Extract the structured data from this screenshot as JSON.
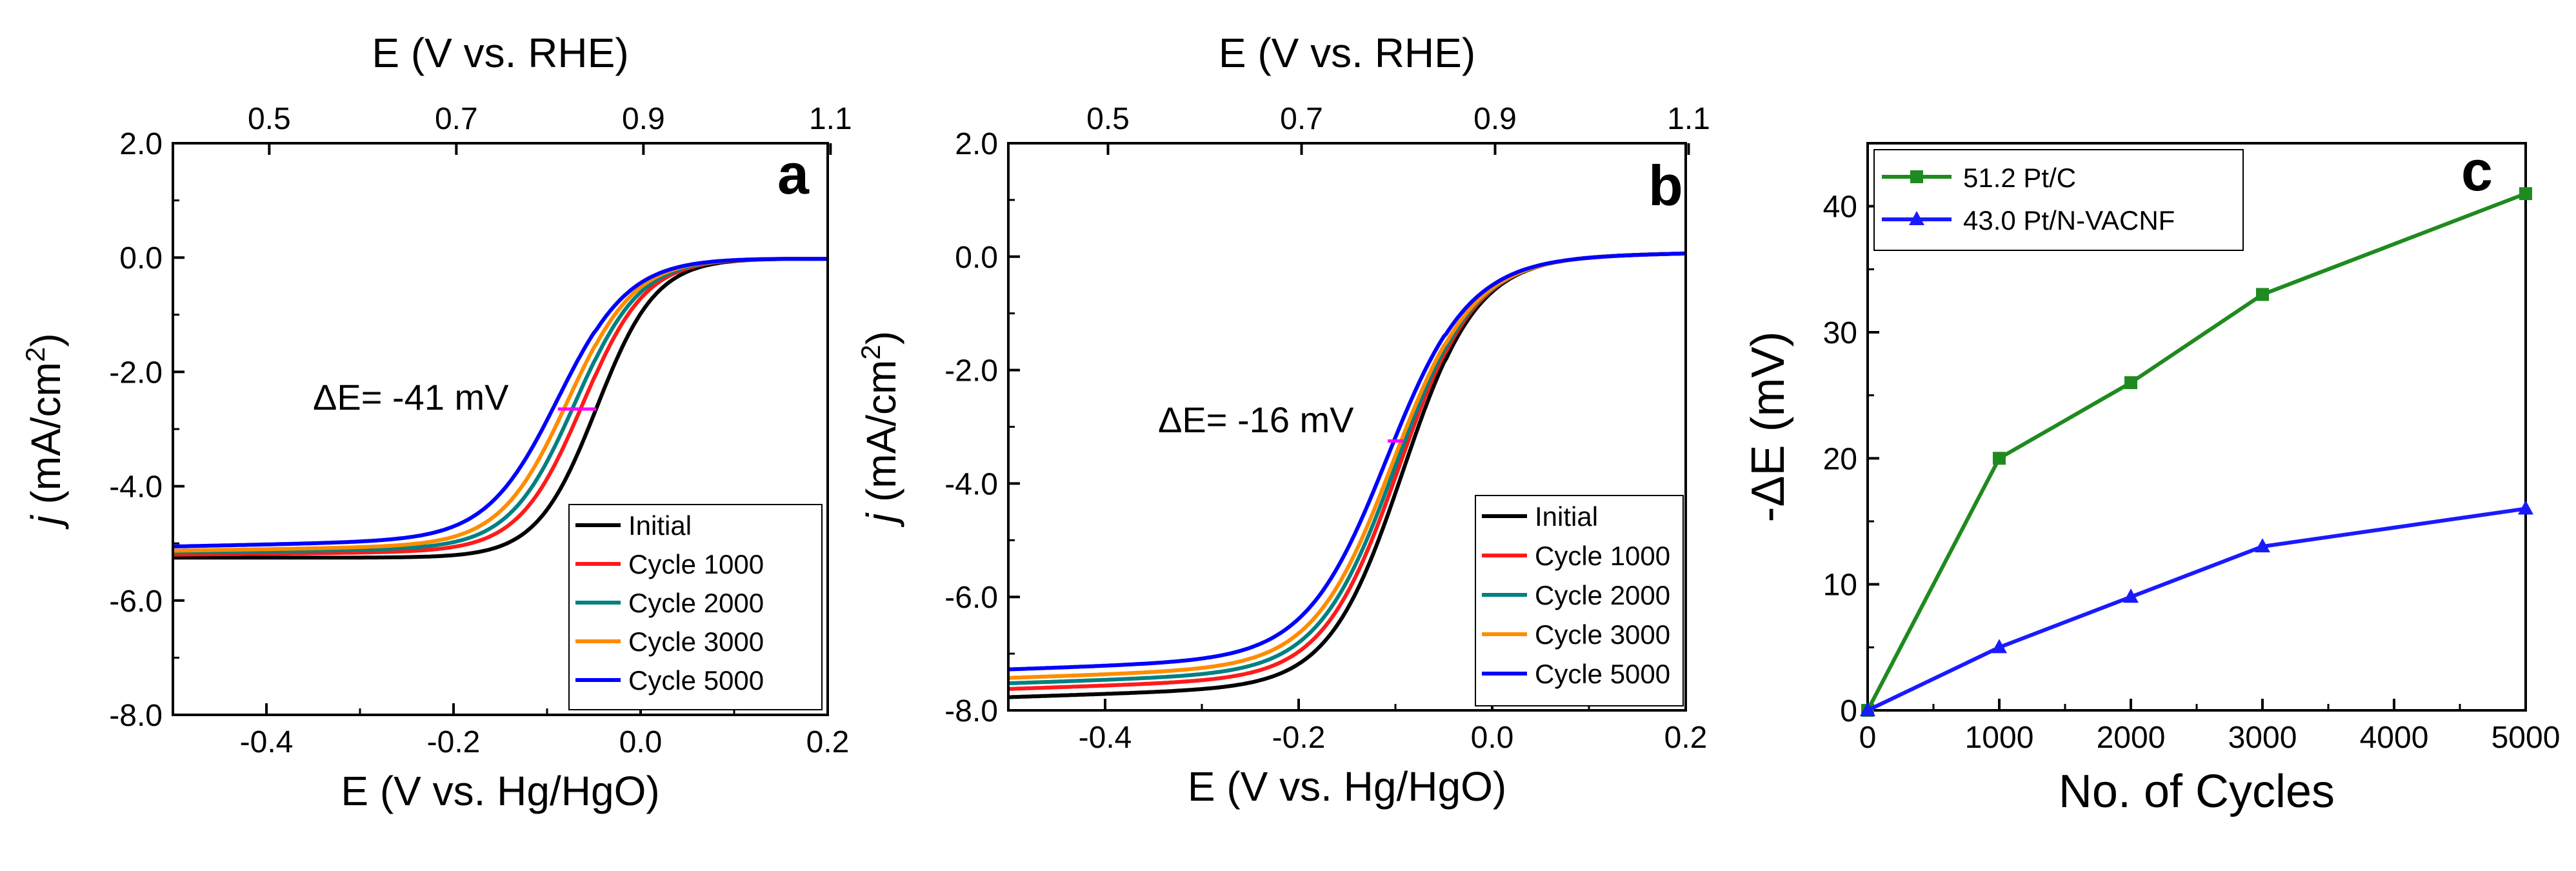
{
  "chart_data": [
    {
      "type": "line",
      "panel": "a",
      "xlabel": "E (V vs. Hg/HgO)",
      "x2label": "E (V vs. RHE)",
      "ylabel_italic": "j",
      "ylabel_text": " (mA/cm",
      "ylabel_sup": "2",
      "ylabel_close": ")",
      "xlim": [
        -0.5,
        0.2
      ],
      "ylim": [
        -8.0,
        2.0
      ],
      "x_ticks": [
        -0.4,
        -0.2,
        0.0,
        0.2
      ],
      "x_tick_labels": [
        "-0.4",
        "-0.2",
        "0.0",
        "0.2"
      ],
      "y_ticks": [
        2.0,
        0.0,
        -2.0,
        -4.0,
        -6.0,
        -8.0
      ],
      "y_tick_labels": [
        "2.0",
        "0.0",
        "-2.0",
        "-4.0",
        "-6.0",
        "-8.0"
      ],
      "x2_tick_labels": [
        "0.5",
        "0.7",
        "0.9",
        "1.1"
      ],
      "x2_rhe_values": [
        0.5,
        0.7,
        0.9,
        1.1
      ],
      "rhe_offset": 0.897,
      "annotation": "ΔE= -41 mV",
      "marker": {
        "x": -0.068,
        "y": -2.65,
        "width": 0.041,
        "color": "#ff00ff"
      },
      "legend": {
        "position": "bottom-right"
      },
      "series": [
        {
          "name": "Initial",
          "color": "#000000",
          "half_wave": -0.047,
          "limit": -5.25,
          "slope": 0.032,
          "tail_slope": 0.0,
          "tail_offset": -0.02
        },
        {
          "name": "Cycle 1000",
          "color": "#ff1a1a",
          "half_wave": -0.062,
          "limit": -5.15,
          "slope": 0.034,
          "tail_slope": 0.45,
          "tail_offset": -0.02
        },
        {
          "name": "Cycle 2000",
          "color": "#008080",
          "half_wave": -0.07,
          "limit": -5.1,
          "slope": 0.035,
          "tail_slope": 0.55,
          "tail_offset": -0.02
        },
        {
          "name": "Cycle 3000",
          "color": "#ff8c00",
          "half_wave": -0.078,
          "limit": -5.05,
          "slope": 0.036,
          "tail_slope": 0.75,
          "tail_offset": -0.02
        },
        {
          "name": "Cycle 5000",
          "color": "#0000ff",
          "half_wave": -0.088,
          "limit": -4.95,
          "slope": 0.038,
          "tail_slope": 1.0,
          "tail_offset": -0.02
        }
      ]
    },
    {
      "type": "line",
      "panel": "b",
      "xlabel": "E (V vs. Hg/HgO)",
      "x2label": "E (V vs. RHE)",
      "ylabel_italic": "j",
      "ylabel_text": " (mA/cm",
      "ylabel_sup": "2",
      "ylabel_close": ")",
      "xlim": [
        -0.5,
        0.2
      ],
      "ylim": [
        -8.0,
        2.0
      ],
      "x_ticks": [
        -0.4,
        -0.2,
        0.0,
        0.2
      ],
      "x_tick_labels": [
        "-0.4",
        "-0.2",
        "0.0",
        "0.2"
      ],
      "y_ticks": [
        2.0,
        0.0,
        -2.0,
        -4.0,
        -6.0,
        -8.0
      ],
      "y_tick_labels": [
        "2.0",
        "0.0",
        "-2.0",
        "-4.0",
        "-6.0",
        "-8.0"
      ],
      "x2_tick_labels": [
        "0.5",
        "0.7",
        "0.9",
        "1.1"
      ],
      "x2_rhe_values": [
        0.5,
        0.7,
        0.9,
        1.1
      ],
      "rhe_offset": 0.897,
      "annotation": "ΔE= -16 mV",
      "marker": {
        "x": -0.1,
        "y": -3.25,
        "width": 0.016,
        "color": "#ff00ff"
      },
      "legend": {
        "position": "bottom-right"
      },
      "series": [
        {
          "name": "Initial",
          "color": "#000000",
          "half_wave": -0.092,
          "limit": -7.6,
          "slope": 0.038,
          "tail_slope": 1.6,
          "tail_offset": 0.06
        },
        {
          "name": "Cycle 1000",
          "color": "#ff1a1a",
          "half_wave": -0.096,
          "limit": -7.45,
          "slope": 0.039,
          "tail_slope": 1.65,
          "tail_offset": 0.06
        },
        {
          "name": "Cycle 2000",
          "color": "#008080",
          "half_wave": -0.099,
          "limit": -7.35,
          "slope": 0.04,
          "tail_slope": 1.65,
          "tail_offset": 0.06
        },
        {
          "name": "Cycle 3000",
          "color": "#ff8c00",
          "half_wave": -0.102,
          "limit": -7.25,
          "slope": 0.041,
          "tail_slope": 1.7,
          "tail_offset": 0.06
        },
        {
          "name": "Cycle 5000",
          "color": "#0000ff",
          "half_wave": -0.108,
          "limit": -7.1,
          "slope": 0.042,
          "tail_slope": 1.7,
          "tail_offset": 0.06
        }
      ]
    },
    {
      "type": "line",
      "panel": "c",
      "xlabel": "No. of Cycles",
      "ylabel": "-ΔE (mV)",
      "xlim": [
        0,
        5000
      ],
      "ylim": [
        0,
        45
      ],
      "x_ticks": [
        0,
        1000,
        2000,
        3000,
        4000,
        5000
      ],
      "x_tick_labels": [
        "0",
        "1000",
        "2000",
        "3000",
        "4000",
        "5000"
      ],
      "y_ticks": [
        0,
        10,
        20,
        30,
        40
      ],
      "y_tick_labels": [
        "0",
        "10",
        "20",
        "30",
        "40"
      ],
      "legend": {
        "position": "top-left"
      },
      "series": [
        {
          "name": "51.2 Pt/C",
          "color": "#1f8a1f",
          "marker": "square",
          "x": [
            0,
            1000,
            2000,
            3000,
            5000
          ],
          "y": [
            0,
            20,
            26,
            33,
            41
          ]
        },
        {
          "name": "43.0 Pt/N-VACNF",
          "color": "#1a1aff",
          "marker": "triangle",
          "x": [
            0,
            1000,
            2000,
            3000,
            5000
          ],
          "y": [
            0,
            5,
            9,
            13,
            16
          ]
        }
      ]
    }
  ]
}
